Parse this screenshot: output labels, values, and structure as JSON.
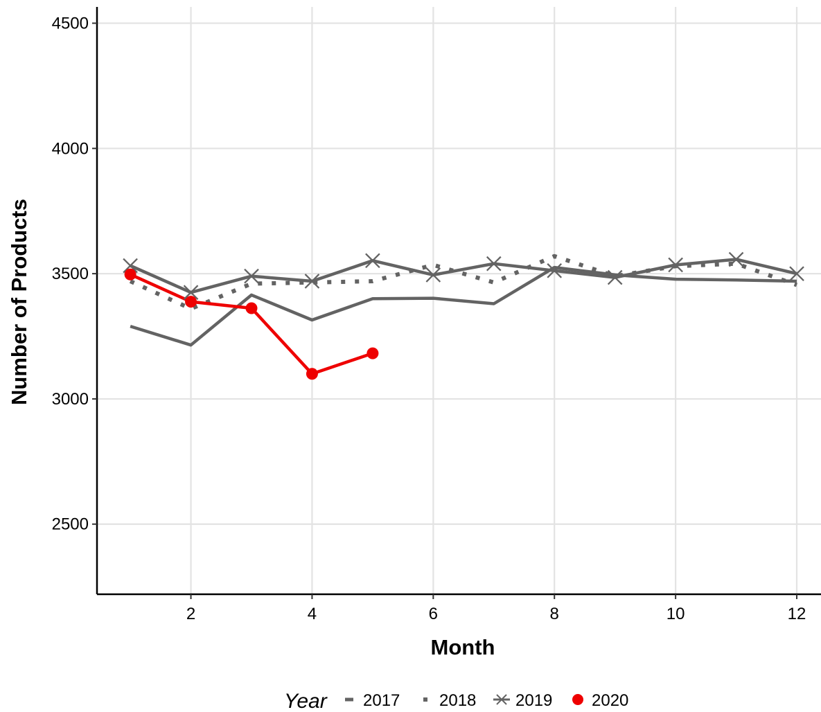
{
  "chart_data": {
    "type": "line",
    "xlabel": "Month",
    "ylabel": "Number of Products",
    "xlim": [
      0.45,
      12.4
    ],
    "ylim": [
      2220,
      4565
    ],
    "x_ticks": [
      2,
      4,
      6,
      8,
      10,
      12
    ],
    "y_ticks": [
      2500,
      3000,
      3500,
      4000,
      4500
    ],
    "grid": true,
    "legend": {
      "title": "Year",
      "position": "bottom"
    },
    "series": [
      {
        "name": "2017",
        "line_style": "solid",
        "marker": "none",
        "color": "#636363",
        "x": [
          1,
          2,
          3,
          4,
          5,
          6,
          7,
          8,
          9,
          10,
          11,
          12
        ],
        "y": [
          3290,
          3215,
          3415,
          3315,
          3400,
          3402,
          3380,
          3525,
          3495,
          3478,
          3475,
          3470
        ]
      },
      {
        "name": "2018",
        "line_style": "dotted",
        "marker": "none",
        "color": "#636363",
        "x": [
          1,
          2,
          3,
          4,
          5,
          6,
          7,
          8,
          9,
          10,
          11,
          12
        ],
        "y": [
          3470,
          3360,
          3460,
          3465,
          3470,
          3535,
          3465,
          3570,
          3490,
          3530,
          3540,
          3455
        ]
      },
      {
        "name": "2019",
        "line_style": "solid",
        "marker": "x",
        "color": "#636363",
        "x": [
          1,
          2,
          3,
          4,
          5,
          6,
          7,
          8,
          9,
          10,
          11,
          12
        ],
        "y": [
          3532,
          3425,
          3490,
          3470,
          3552,
          3495,
          3540,
          3512,
          3485,
          3535,
          3557,
          3500
        ]
      },
      {
        "name": "2020",
        "line_style": "solid",
        "marker": "circle",
        "color": "#ee0000",
        "x": [
          1,
          2,
          3,
          4,
          5
        ],
        "y": [
          3497,
          3388,
          3362,
          3100,
          3182
        ]
      }
    ]
  }
}
